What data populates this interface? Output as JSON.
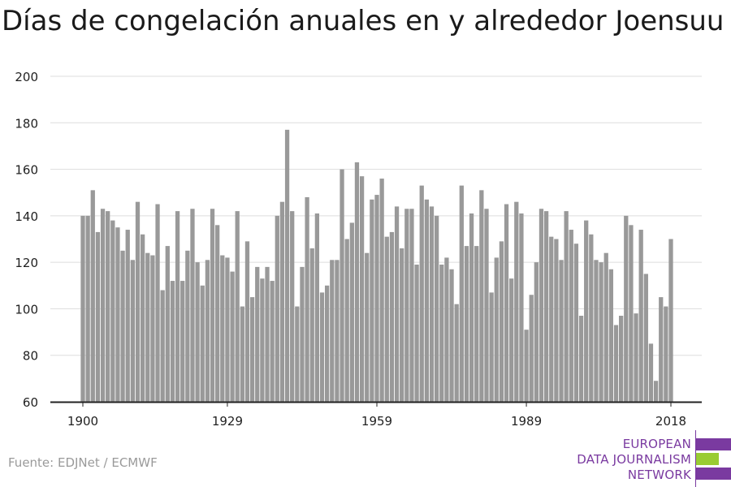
{
  "chart_data": {
    "type": "bar",
    "title": "Días de congelación anuales en y alrededor Joensuu",
    "xlabel": "",
    "ylabel": "",
    "ylim": [
      60,
      200
    ],
    "yticks": [
      60,
      80,
      100,
      120,
      140,
      160,
      180,
      200
    ],
    "xticks": [
      1900,
      1929,
      1959,
      1989,
      2018
    ],
    "grid": true,
    "bar_color": "#999999",
    "x": [
      1900,
      1901,
      1902,
      1903,
      1904,
      1905,
      1906,
      1907,
      1908,
      1909,
      1910,
      1911,
      1912,
      1913,
      1914,
      1915,
      1916,
      1917,
      1918,
      1919,
      1920,
      1921,
      1922,
      1923,
      1924,
      1925,
      1926,
      1927,
      1928,
      1929,
      1930,
      1931,
      1932,
      1933,
      1934,
      1935,
      1936,
      1937,
      1938,
      1939,
      1940,
      1941,
      1942,
      1943,
      1944,
      1945,
      1946,
      1947,
      1948,
      1949,
      1950,
      1951,
      1952,
      1953,
      1954,
      1955,
      1956,
      1957,
      1958,
      1959,
      1960,
      1961,
      1962,
      1963,
      1964,
      1965,
      1966,
      1967,
      1968,
      1969,
      1970,
      1971,
      1972,
      1973,
      1974,
      1975,
      1976,
      1977,
      1978,
      1979,
      1980,
      1981,
      1982,
      1983,
      1984,
      1985,
      1986,
      1987,
      1988,
      1989,
      1990,
      1991,
      1992,
      1993,
      1994,
      1995,
      1996,
      1997,
      1998,
      1999,
      2000,
      2001,
      2002,
      2003,
      2004,
      2005,
      2006,
      2007,
      2008,
      2009,
      2010,
      2011,
      2012,
      2013,
      2014,
      2015,
      2016,
      2017,
      2018
    ],
    "values": [
      140,
      140,
      151,
      133,
      143,
      142,
      138,
      135,
      125,
      134,
      121,
      146,
      132,
      124,
      123,
      145,
      108,
      127,
      112,
      142,
      112,
      125,
      143,
      120,
      110,
      121,
      143,
      136,
      123,
      122,
      116,
      142,
      101,
      129,
      105,
      118,
      113,
      118,
      112,
      140,
      146,
      177,
      142,
      101,
      118,
      148,
      126,
      141,
      107,
      110,
      121,
      121,
      160,
      130,
      137,
      163,
      157,
      124,
      147,
      149,
      156,
      131,
      133,
      144,
      126,
      143,
      143,
      119,
      153,
      147,
      144,
      140,
      119,
      122,
      117,
      102,
      153,
      127,
      141,
      127,
      151,
      143,
      107,
      122,
      129,
      145,
      113,
      146,
      141,
      91,
      106,
      120,
      143,
      142,
      131,
      130,
      121,
      142,
      134,
      128,
      97,
      138,
      132,
      121,
      120,
      124,
      117,
      93,
      97,
      140,
      136,
      98,
      134,
      115,
      85,
      69,
      105,
      101,
      130
    ]
  },
  "source": "Fuente: EDJNet / ECMWF",
  "logo": {
    "line1": "EUROPEAN",
    "line2": "DATA JOURNALISM",
    "line3": "NETWORK",
    "purple": "#7a3aa0",
    "green": "#99cc33"
  }
}
